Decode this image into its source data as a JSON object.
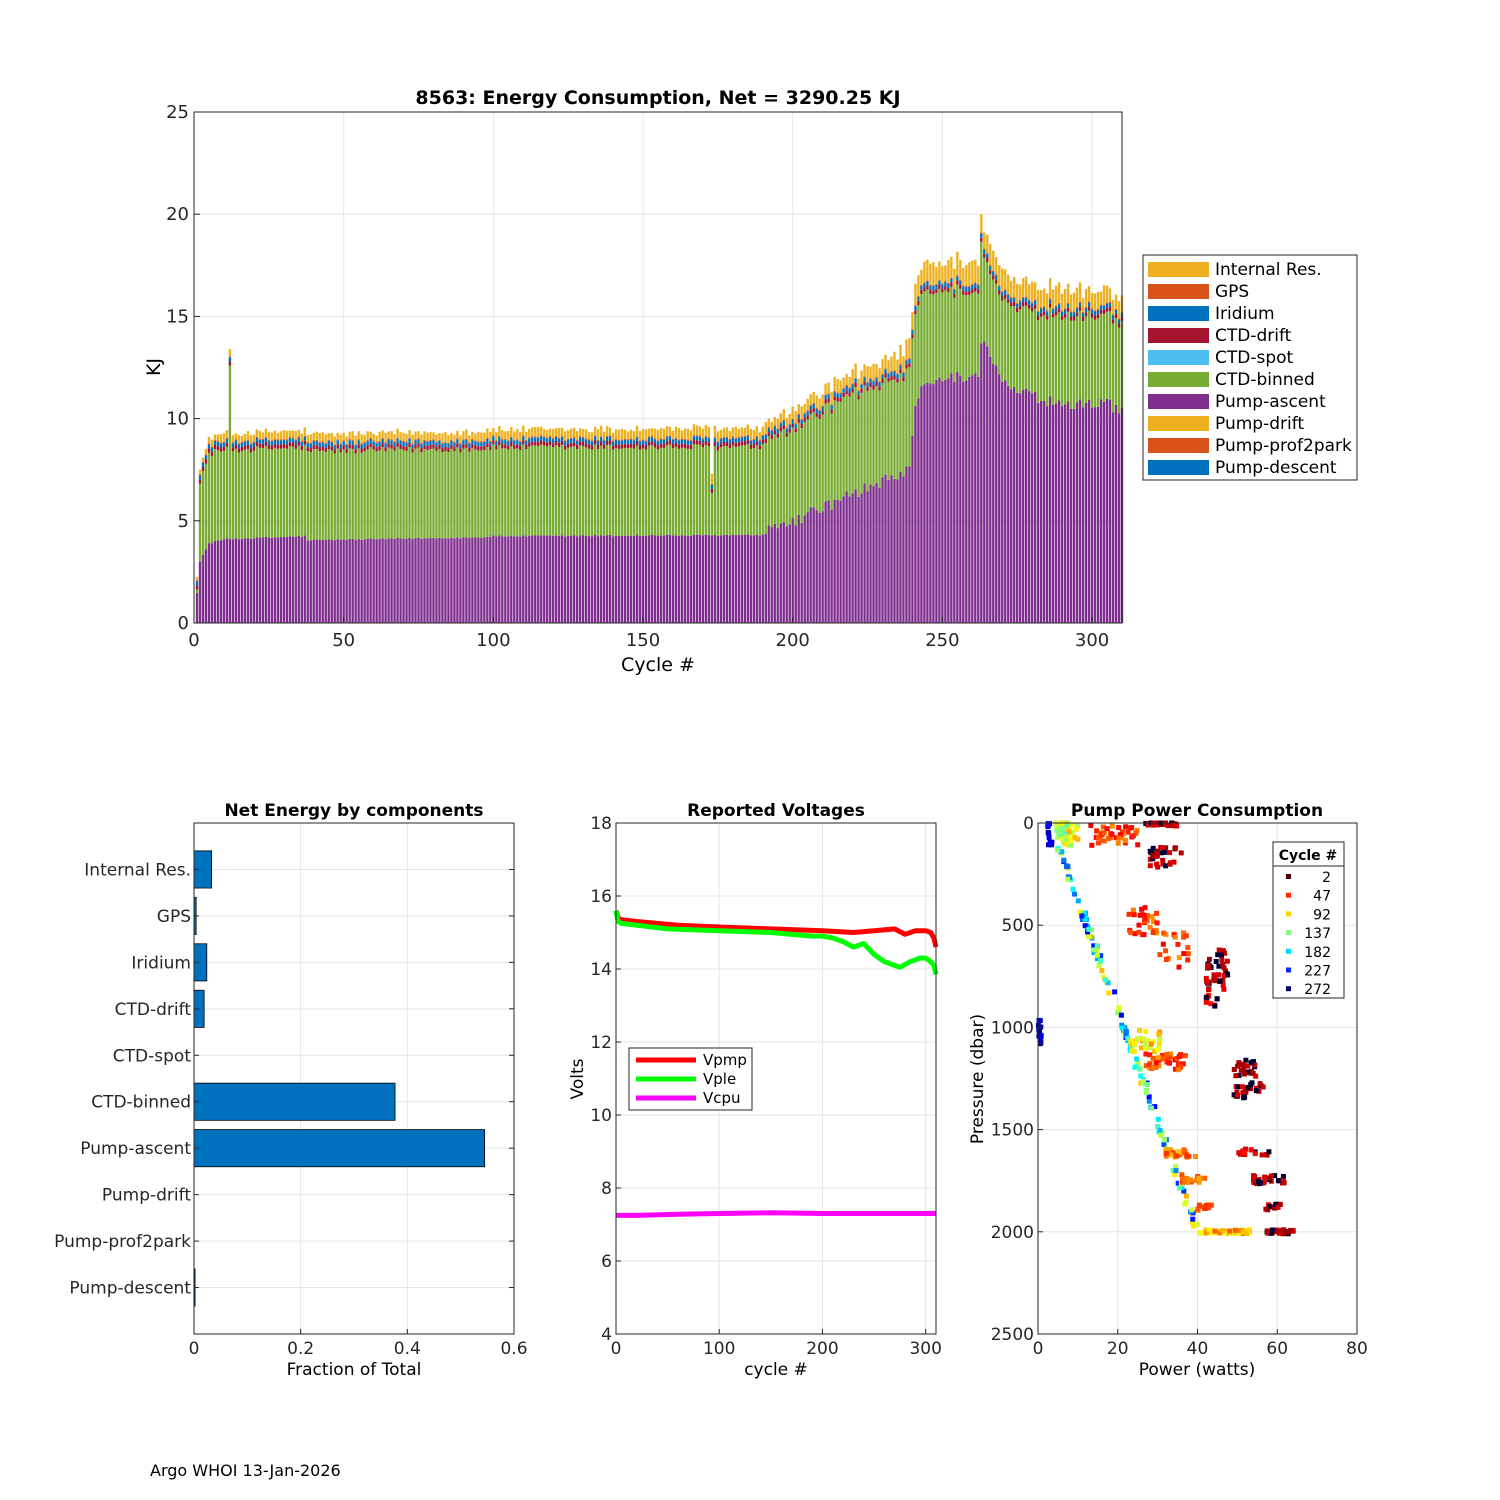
{
  "footer": "Argo WHOI 13-Jan-2026",
  "colors": {
    "internal_res": "#EDB120",
    "gps": "#D95319",
    "iridium": "#0072BD",
    "ctd_drift": "#A2142F",
    "ctd_spot": "#4DBEEE",
    "ctd_binned": "#77AC30",
    "pump_ascent": "#7E2F8E",
    "pump_drift": "#EDB120",
    "pump_prof2park": "#D95319",
    "pump_descent": "#0072BD",
    "vpmp": "#FF0000",
    "vple": "#00FF00",
    "vcpu": "#FF00FF",
    "hbar": "#0072BD"
  },
  "chart_data": [
    {
      "type": "bar",
      "stacked": true,
      "title": "8563: Energy Consumption,  Net = 3290.25 KJ",
      "xlabel": "Cycle #",
      "ylabel": "KJ",
      "xlim": [
        0,
        310
      ],
      "ylim": [
        0,
        25
      ],
      "xticks": [
        0,
        50,
        100,
        150,
        200,
        250,
        300
      ],
      "yticks": [
        0,
        5,
        10,
        15,
        20,
        25
      ],
      "legend_position": "right-outside",
      "legend": [
        "Internal Res.",
        "GPS",
        "Iridium",
        "CTD-drift",
        "CTD-spot",
        "CTD-binned",
        "Pump-ascent",
        "Pump-drift",
        "Pump-prof2park",
        "Pump-descent"
      ],
      "stack_order_bottom_to_top": [
        "Pump-ascent",
        "CTD-binned",
        "CTD-drift",
        "Iridium",
        "GPS",
        "Internal Res."
      ],
      "cycles_range": [
        1,
        310
      ],
      "pump_ascent_profile": {
        "x": [
          1,
          2,
          5,
          10,
          37,
          38,
          98,
          99,
          190,
          192,
          200,
          210,
          220,
          230,
          239,
          241,
          243,
          250,
          255,
          262,
          263,
          270,
          280,
          290,
          300,
          306,
          307,
          310
        ],
        "y": [
          1.5,
          3.0,
          3.9,
          4.1,
          4.25,
          4.05,
          4.2,
          4.25,
          4.3,
          4.5,
          5.0,
          5.6,
          6.3,
          6.9,
          7.5,
          10.5,
          11.4,
          11.8,
          12.0,
          12.0,
          13.9,
          11.7,
          11.1,
          10.7,
          10.7,
          11.0,
          10.5,
          10.3
        ]
      },
      "ctd_binned_profile": {
        "x": [
          1,
          2,
          5,
          10,
          190,
          200,
          210,
          220,
          230,
          239,
          241,
          250,
          260,
          270,
          280,
          290,
          300,
          310
        ],
        "y": [
          0.3,
          3.8,
          4.4,
          4.35,
          4.3,
          4.5,
          4.7,
          4.9,
          4.7,
          4.8,
          4.6,
          4.3,
          4.1,
          4.0,
          4.1,
          4.3,
          4.3,
          4.3
        ]
      },
      "ctd_drift": 0.2,
      "iridium": 0.2,
      "gps": 0.05,
      "internal_res_profile": {
        "x": [
          1,
          5,
          10,
          200,
          230,
          240,
          260,
          280,
          300,
          310
        ],
        "y": [
          0.2,
          0.3,
          0.35,
          0.5,
          0.7,
          0.9,
          1.0,
          0.9,
          0.8,
          0.8
        ]
      },
      "spikes": [
        {
          "cycle": 12,
          "total": 13.4
        },
        {
          "cycle": 263,
          "total": 20.0
        },
        {
          "cycle": 173,
          "total": 7.3
        }
      ]
    },
    {
      "type": "bar",
      "orientation": "horizontal",
      "title": "Net Energy by components",
      "xlabel": "Fraction of Total",
      "ylabel": "",
      "xlim": [
        0,
        0.6
      ],
      "xticks": [
        "0",
        "0.2",
        "0.4",
        "0.6"
      ],
      "categories": [
        "Internal Res.",
        "GPS",
        "Iridium",
        "CTD-drift",
        "CTD-spot",
        "CTD-binned",
        "Pump-ascent",
        "Pump-drift",
        "Pump-prof2park",
        "Pump-descent"
      ],
      "values": [
        0.033,
        0.004,
        0.024,
        0.019,
        0.0,
        0.377,
        0.545,
        0.0,
        0.0,
        0.002
      ]
    },
    {
      "type": "line",
      "title": "Reported Voltages",
      "xlabel": "cycle #",
      "ylabel": "Volts",
      "xlim": [
        0,
        310
      ],
      "ylim": [
        4,
        18
      ],
      "xticks": [
        0,
        100,
        200,
        300
      ],
      "yticks": [
        4,
        6,
        8,
        10,
        12,
        14,
        16,
        18
      ],
      "legend_position": "left-middle",
      "series": [
        {
          "name": "Vpmp",
          "x": [
            0,
            2,
            5,
            20,
            60,
            100,
            150,
            200,
            230,
            250,
            270,
            280,
            290,
            300,
            305,
            308,
            310
          ],
          "y": [
            15.6,
            15.4,
            15.35,
            15.3,
            15.2,
            15.15,
            15.1,
            15.05,
            15.0,
            15.05,
            15.1,
            14.95,
            15.05,
            15.05,
            15.0,
            14.85,
            14.6
          ]
        },
        {
          "name": "Vple",
          "x": [
            0,
            2,
            5,
            50,
            100,
            150,
            190,
            200,
            210,
            220,
            230,
            240,
            250,
            260,
            270,
            275,
            285,
            295,
            300,
            305,
            308,
            310
          ],
          "y": [
            15.6,
            15.3,
            15.25,
            15.1,
            15.05,
            15.0,
            14.9,
            14.9,
            14.85,
            14.75,
            14.6,
            14.7,
            14.4,
            14.2,
            14.1,
            14.05,
            14.2,
            14.3,
            14.3,
            14.2,
            14.1,
            13.85
          ]
        },
        {
          "name": "Vcpu",
          "x": [
            0,
            20,
            60,
            100,
            150,
            200,
            250,
            310
          ],
          "y": [
            7.25,
            7.25,
            7.28,
            7.3,
            7.32,
            7.3,
            7.3,
            7.3
          ]
        }
      ]
    },
    {
      "type": "scatter",
      "title": "Pump Power Consumption",
      "xlabel": "Power (watts)",
      "ylabel": "Pressure (dbar)",
      "xlim": [
        0,
        80
      ],
      "ylim": [
        0,
        2500
      ],
      "y_reversed": true,
      "xticks": [
        0,
        20,
        40,
        60,
        80
      ],
      "yticks": [
        0,
        500,
        1000,
        1500,
        2000,
        2500
      ],
      "legend_title": "Cycle #",
      "legend_position": "top-right",
      "legend": [
        "2",
        "47",
        "92",
        "137",
        "182",
        "227",
        "272"
      ],
      "cycle_color_scale": "jet",
      "clusters": [
        {
          "x": 3,
          "y": 50,
          "dx": 0.6,
          "dy": 60,
          "n": 12,
          "t": [
            0.05,
            0.15
          ]
        },
        {
          "x": 0.5,
          "y": 1020,
          "dx": 0.4,
          "dy": 60,
          "n": 12,
          "t": [
            0.0,
            0.1
          ]
        },
        {
          "x": 6,
          "y": 30,
          "dx": 1.5,
          "dy": 40,
          "n": 30,
          "t": [
            0.35,
            0.7
          ]
        },
        {
          "x": 8,
          "y": 60,
          "dx": 2,
          "dy": 50,
          "n": 25,
          "t": [
            0.5,
            0.7
          ]
        },
        {
          "x": 19,
          "y": 60,
          "dx": 6,
          "dy": 50,
          "n": 40,
          "t": [
            0.72,
            0.9
          ]
        },
        {
          "x": 31,
          "y": 5,
          "dx": 4,
          "dy": 10,
          "n": 30,
          "t": [
            0.9,
            1.0
          ]
        },
        {
          "x": 32,
          "y": 170,
          "dx": 4,
          "dy": 50,
          "n": 30,
          "t": [
            0.9,
            1.0
          ]
        },
        {
          "x": 26,
          "y": 480,
          "dx": 4,
          "dy": 80,
          "n": 30,
          "t": [
            0.72,
            0.9
          ]
        },
        {
          "x": 34,
          "y": 620,
          "dx": 4,
          "dy": 100,
          "n": 20,
          "t": [
            0.72,
            0.9
          ]
        },
        {
          "x": 45,
          "y": 720,
          "dx": 3,
          "dy": 100,
          "n": 40,
          "t": [
            0.9,
            1.0
          ]
        },
        {
          "x": 44,
          "y": 870,
          "dx": 2,
          "dy": 30,
          "n": 10,
          "t": [
            0.85,
            1.0
          ]
        },
        {
          "x": 27,
          "y": 1060,
          "dx": 4,
          "dy": 60,
          "n": 30,
          "t": [
            0.55,
            0.75
          ]
        },
        {
          "x": 32,
          "y": 1170,
          "dx": 5,
          "dy": 40,
          "n": 40,
          "t": [
            0.72,
            0.9
          ]
        },
        {
          "x": 52,
          "y": 1200,
          "dx": 3,
          "dy": 40,
          "n": 25,
          "t": [
            0.9,
            1.0
          ]
        },
        {
          "x": 53,
          "y": 1310,
          "dx": 4,
          "dy": 40,
          "n": 25,
          "t": [
            0.9,
            1.0
          ]
        },
        {
          "x": 36,
          "y": 1615,
          "dx": 4,
          "dy": 20,
          "n": 25,
          "t": [
            0.68,
            0.85
          ]
        },
        {
          "x": 54,
          "y": 1615,
          "dx": 4,
          "dy": 20,
          "n": 15,
          "t": [
            0.85,
            1.0
          ]
        },
        {
          "x": 39,
          "y": 1740,
          "dx": 3,
          "dy": 20,
          "n": 20,
          "t": [
            0.7,
            0.85
          ]
        },
        {
          "x": 58,
          "y": 1745,
          "dx": 4,
          "dy": 20,
          "n": 30,
          "t": [
            0.9,
            1.0
          ]
        },
        {
          "x": 42,
          "y": 1880,
          "dx": 3,
          "dy": 15,
          "n": 12,
          "t": [
            0.72,
            0.85
          ]
        },
        {
          "x": 59,
          "y": 1880,
          "dx": 2,
          "dy": 15,
          "n": 12,
          "t": [
            0.9,
            1.0
          ]
        },
        {
          "x": 47,
          "y": 2000,
          "dx": 7,
          "dy": 10,
          "n": 45,
          "t": [
            0.6,
            0.8
          ]
        },
        {
          "x": 61,
          "y": 2000,
          "dx": 4,
          "dy": 10,
          "n": 35,
          "t": [
            0.9,
            1.0
          ]
        }
      ],
      "diagonal": {
        "p0": [
          5,
          100
        ],
        "p1": [
          40,
          2000
        ],
        "n": 140
      }
    }
  ]
}
